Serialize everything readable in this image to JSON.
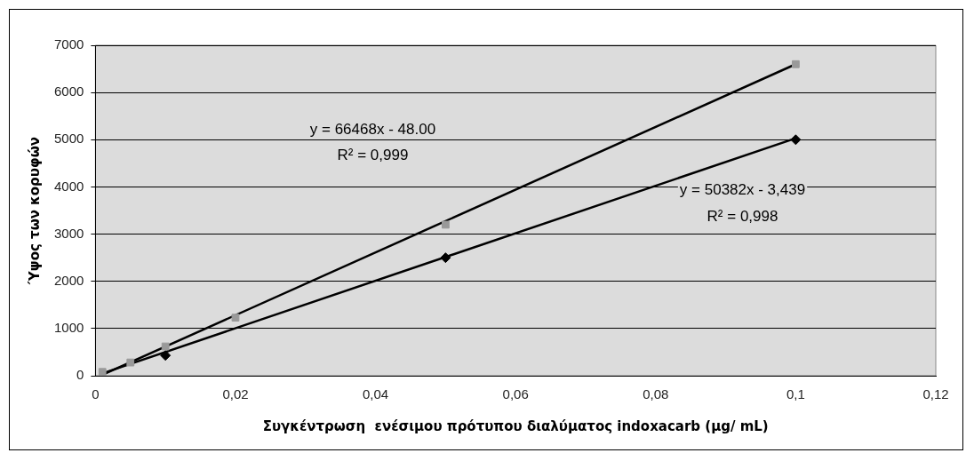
{
  "chart_data": {
    "type": "scatter",
    "xlabel": "Συγκέντρωση  ενέσιμου πρότυπου διαλύματος indoxacarb (μg/ mL)",
    "ylabel": "Ύψος των κορυφών",
    "xlim": [
      0,
      0.12
    ],
    "xticks": [
      0,
      {
        "value": 0.02,
        "label": "0,02"
      },
      {
        "value": 0.04,
        "label": "0,04"
      },
      {
        "value": 0.06,
        "label": "0,06"
      },
      {
        "value": 0.08,
        "label": "0,08"
      },
      {
        "value": 0.1,
        "label": "0,1"
      },
      {
        "value": 0.12,
        "label": "0,12"
      }
    ],
    "ylim": [
      0,
      7000
    ],
    "yticks": [
      0,
      1000,
      2000,
      3000,
      4000,
      5000,
      6000,
      7000
    ],
    "grid": "y",
    "legend": false,
    "series": [
      {
        "marker": "square",
        "color": "#999999",
        "x": [
          0.001,
          0.005,
          0.01,
          0.02,
          0.05,
          0.1
        ],
        "values": [
          80,
          280,
          620,
          1230,
          3200,
          6600
        ]
      },
      {
        "marker": "diamond",
        "color": "#000000",
        "x": [
          0.01,
          0.05,
          0.1
        ],
        "values": [
          430,
          2500,
          5000
        ]
      },
      {
        "type": "line",
        "marker": "none",
        "color": "#000000",
        "x": [
          0.001,
          0.1
        ],
        "values": [
          20,
          6600
        ]
      },
      {
        "type": "line",
        "marker": "none",
        "color": "#000000",
        "x": [
          0.001,
          0.1
        ],
        "values": [
          50,
          5030
        ]
      }
    ],
    "annotations": [
      "y = 66468x - 48.00",
      "R² = 0,999",
      "y = 50382x - 3,439",
      "R² = 0,998"
    ]
  }
}
